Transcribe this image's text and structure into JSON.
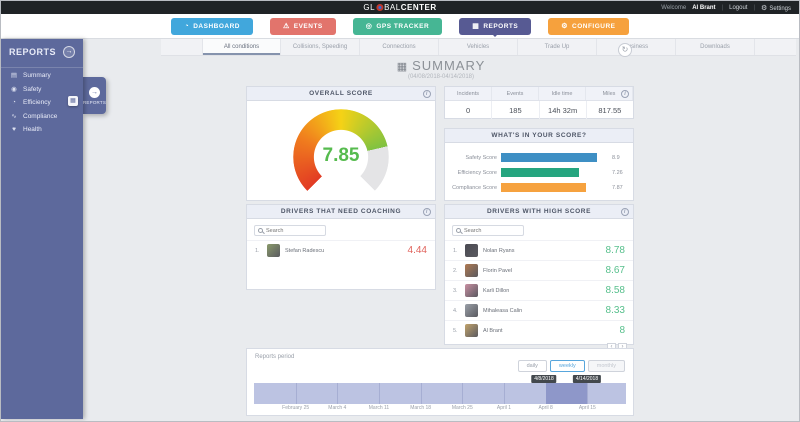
{
  "colors": {
    "nav_dashboard": "#41a7dc",
    "nav_events": "#e2746c",
    "nav_gps_tracker": "#46b694",
    "nav_reports": "#575a93",
    "nav_configure": "#f6a13d",
    "sidebar": "#5d699c",
    "score_high": "#58c08d",
    "score_low": "#e0635c",
    "gauge_value": "#56bb4e",
    "timeline_band": "#bcc3e2",
    "timeline_selected": "#8e97c9"
  },
  "topbar": {
    "logo_gl": "GL",
    "logo_bal": "BAL",
    "logo_center": "CENTER",
    "welcome_label": "Welcome",
    "user_name": "Al Brant",
    "logout_label": "Logout",
    "settings_label": "Settings",
    "settings_glyph": "⚙"
  },
  "nav": {
    "items": [
      {
        "label": "DASHBOARD",
        "glyph": "◔",
        "color": "#41a7dc"
      },
      {
        "label": "EVENTS",
        "glyph": "⚠",
        "color": "#e2746c"
      },
      {
        "label": "GPS TRACKER",
        "glyph": "◎",
        "color": "#46b694"
      },
      {
        "label": "REPORTS",
        "glyph": "▦",
        "color": "#575a93"
      },
      {
        "label": "CONFIGURE",
        "glyph": "⚙",
        "color": "#f6a13d"
      }
    ]
  },
  "sidebar": {
    "title": "REPORTS",
    "toggle_glyph": "→",
    "flyout_label": "REPORTS",
    "flyout_glyph": "→",
    "badge_glyph": "▦",
    "items": [
      {
        "label": "Summary",
        "glyph": "▤"
      },
      {
        "label": "Safety",
        "glyph": "◉"
      },
      {
        "label": "Efficiency",
        "glyph": "◔"
      },
      {
        "label": "Compliance",
        "glyph": "∿"
      },
      {
        "label": "Health",
        "glyph": "♥"
      }
    ]
  },
  "subtabs": {
    "items": [
      "All conditions",
      "Collisions, Speeding",
      "Connections",
      "Vehicles",
      "Trade Up",
      "Business",
      "Downloads"
    ]
  },
  "page": {
    "title": "SUMMARY",
    "title_glyph": "▦",
    "date_range": "(04/08/2018-04/14/2018)",
    "refresh_glyph": "↻"
  },
  "overall_score": {
    "title": "OVERALL SCORE",
    "value": "7.85",
    "max": 10,
    "info_glyph": "i"
  },
  "stats": {
    "columns": [
      {
        "label": "Incidents",
        "value": "0"
      },
      {
        "label": "Events",
        "value": "185"
      },
      {
        "label": "Idle time",
        "value": "14h 32m"
      },
      {
        "label": "Miles",
        "value": "817.55"
      }
    ]
  },
  "score_breakdown": {
    "title": "WHAT'S IN YOUR SCORE?",
    "bars": [
      {
        "label": "Safety Score",
        "value": 8.9,
        "display": "8.9",
        "color": "#3e8fc4"
      },
      {
        "label": "Efficiency Score",
        "value": 7.26,
        "display": "7.26",
        "color": "#25a57f"
      },
      {
        "label": "Compliance Score",
        "value": 7.87,
        "display": "7.87",
        "color": "#f6a23f"
      }
    ]
  },
  "coaching": {
    "title": "DRIVERS THAT NEED COACHING",
    "search_placeholder": "Search",
    "drivers": [
      {
        "rank": "1.",
        "name": "Stefan Radescu",
        "score": "4.44",
        "avatar_color": "#8a9a6b"
      }
    ]
  },
  "high_score": {
    "title": "DRIVERS WITH HIGH SCORE",
    "search_placeholder": "Search",
    "drivers": [
      {
        "rank": "1.",
        "name": "Nolan Ryans",
        "score": "8.78",
        "avatar_color": "#4a4a52"
      },
      {
        "rank": "2.",
        "name": "Florin Pavel",
        "score": "8.67",
        "avatar_color": "#b07a52"
      },
      {
        "rank": "3.",
        "name": "Karli Dillon",
        "score": "8.58",
        "avatar_color": "#c98fa2"
      },
      {
        "rank": "4.",
        "name": "Mihaleasa Calin",
        "score": "8.33",
        "avatar_color": "#9aa0a8"
      },
      {
        "rank": "5.",
        "name": "Al Brant",
        "score": "8",
        "avatar_color": "#c2a36b"
      }
    ],
    "pagination": {
      "prev": "‹",
      "next": "›"
    }
  },
  "timeline": {
    "label": "Reports period",
    "buttons": [
      {
        "label": "daily",
        "state": "default"
      },
      {
        "label": "weekly",
        "state": "active"
      },
      {
        "label": "monthly",
        "state": "disabled"
      }
    ],
    "tooltips": {
      "start": "4/8/2018",
      "end": "4/14/2018"
    },
    "axis_labels": [
      "February 25",
      "March 4",
      "March 11",
      "March 18",
      "March 25",
      "April 1",
      "April 8",
      "April 15"
    ],
    "selection": {
      "start_percent": 78.4,
      "width_percent": 11.2
    }
  }
}
